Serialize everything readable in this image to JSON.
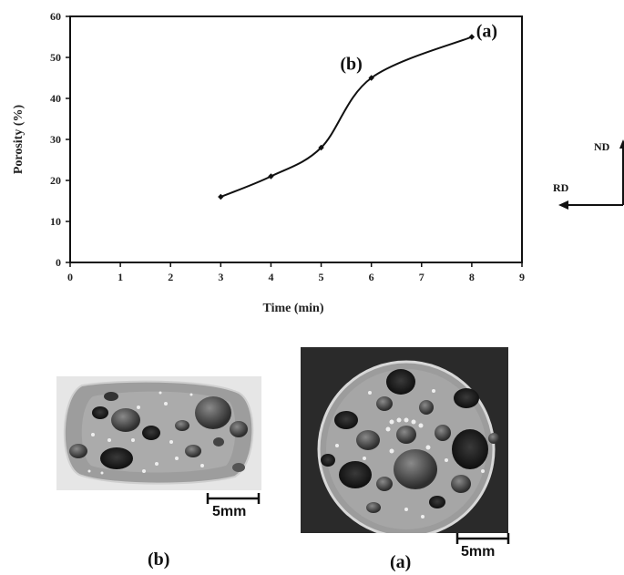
{
  "chart_data": {
    "type": "line",
    "xlabel": "Time (min)",
    "ylabel": "Porosity (%)",
    "xlim": [
      0,
      9
    ],
    "ylim": [
      0,
      60
    ],
    "xticks": [
      0,
      1,
      2,
      3,
      4,
      5,
      6,
      7,
      8,
      9
    ],
    "yticks": [
      0,
      10,
      20,
      30,
      40,
      50,
      60
    ],
    "grid": false,
    "series": [
      {
        "x": [
          3,
          4,
          5,
          6,
          8
        ],
        "y": [
          16,
          21,
          28,
          45,
          55
        ]
      }
    ],
    "annotations": [
      {
        "text": "(b)",
        "x": 5.6,
        "y": 47
      },
      {
        "text": "(a)",
        "x": 8.3,
        "y": 55
      }
    ]
  },
  "direction_labels": {
    "nd": "ND",
    "rd": "RD"
  },
  "photos": [
    {
      "caption": "(b)",
      "scale_bar": "5mm"
    },
    {
      "caption": "(a)",
      "scale_bar": "5mm"
    }
  ]
}
